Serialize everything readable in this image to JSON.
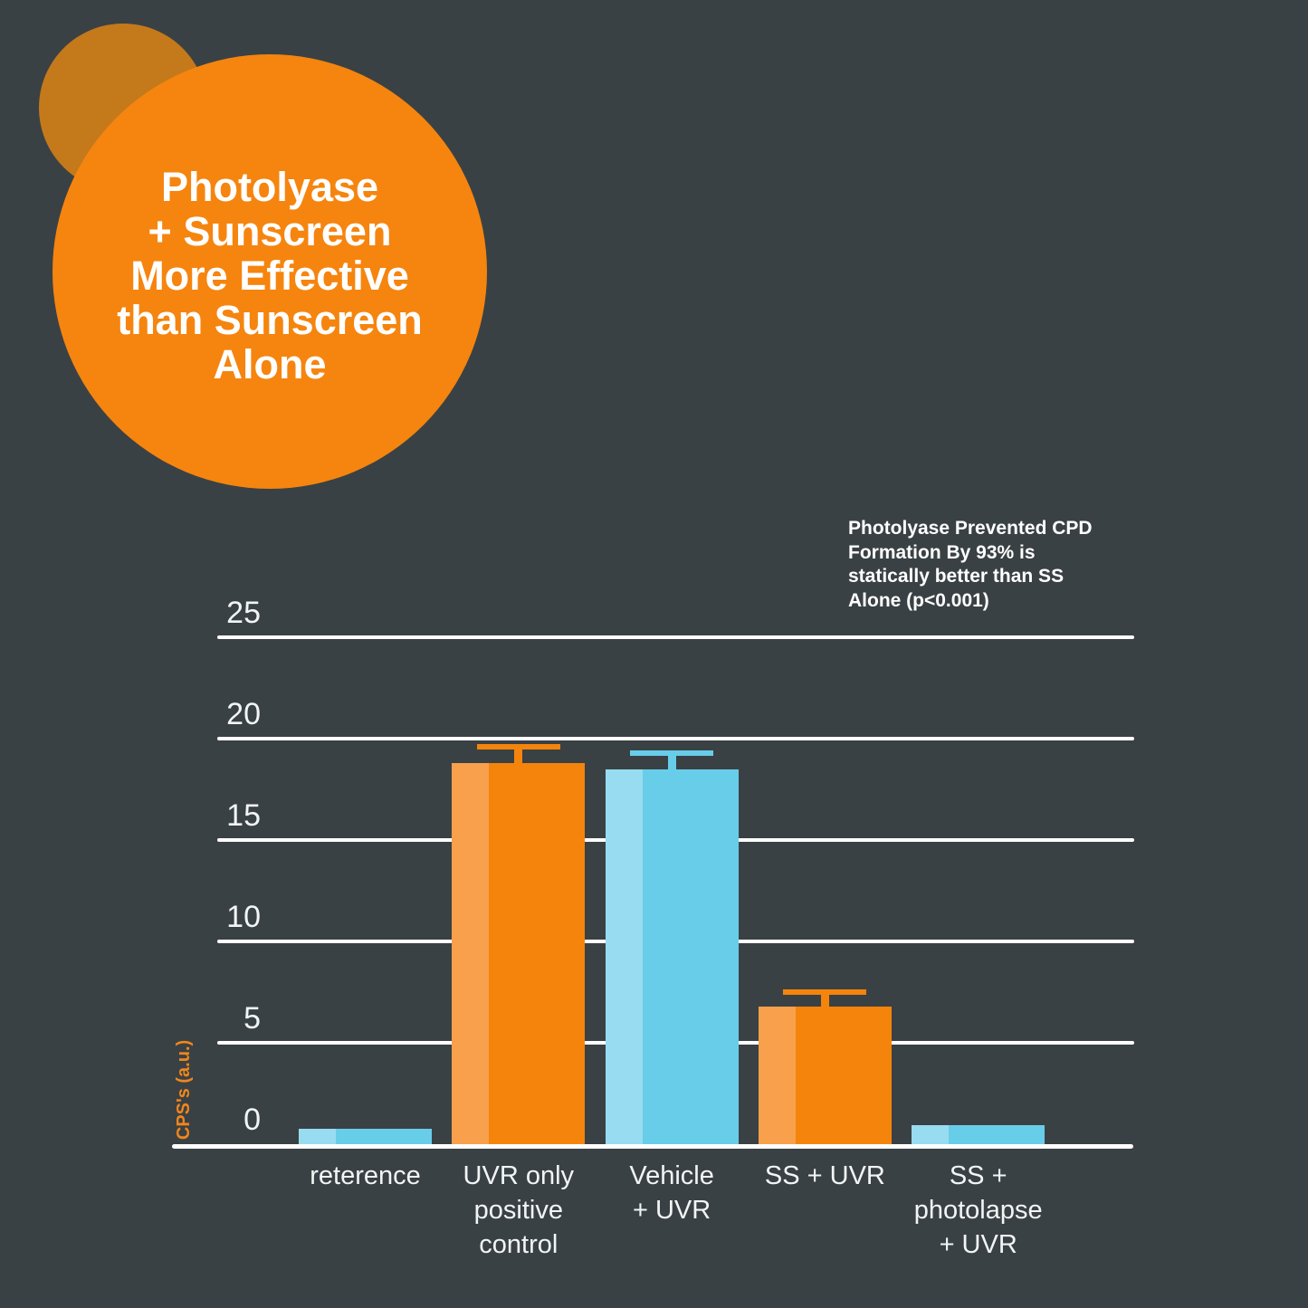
{
  "background_color": "#3A4144",
  "badge": {
    "fill_color": "#F5850F",
    "accent_circle_color": "#C4791B",
    "text_color": "#FFFFFF",
    "lines": [
      "Photolyase",
      "+ Sunscreen",
      "More Effective",
      "than Sunscreen",
      "Alone"
    ]
  },
  "annotation": {
    "text_color": "#FFFFFF",
    "lines": [
      "Photolyase Prevented CPD",
      "Formation By 93% is",
      "statically better than SS",
      "Alone (p<0.001)"
    ]
  },
  "chart_data": {
    "type": "bar",
    "title": "",
    "xlabel": "",
    "ylabel": "CPS's (a.u.)",
    "ylim": [
      0,
      25
    ],
    "yticks": [
      0,
      5,
      10,
      15,
      20,
      25
    ],
    "grid": true,
    "legend": "none",
    "categories": [
      "reterence",
      "UVR only\npositive\ncontrol",
      "Vehicle\n+ UVR",
      "SS + UVR",
      "SS +\nphotolapse\n+ UVR"
    ],
    "values": [
      0.75,
      18.8,
      18.5,
      6.8,
      0.95
    ],
    "errors": [
      null,
      0.8,
      0.8,
      0.7,
      null
    ],
    "bar_color_keys": [
      "blue",
      "orange",
      "blue",
      "orange",
      "blue"
    ],
    "bar_palette": {
      "orange": {
        "main": "#F5840C",
        "highlight": "#F8A04B"
      },
      "blue": {
        "main": "#68CDE9",
        "highlight": "#98DCF1"
      }
    },
    "gridline_color": "#FFFFFF",
    "tick_color": "#F2F5F5",
    "ylabel_color": "#F0861B"
  }
}
